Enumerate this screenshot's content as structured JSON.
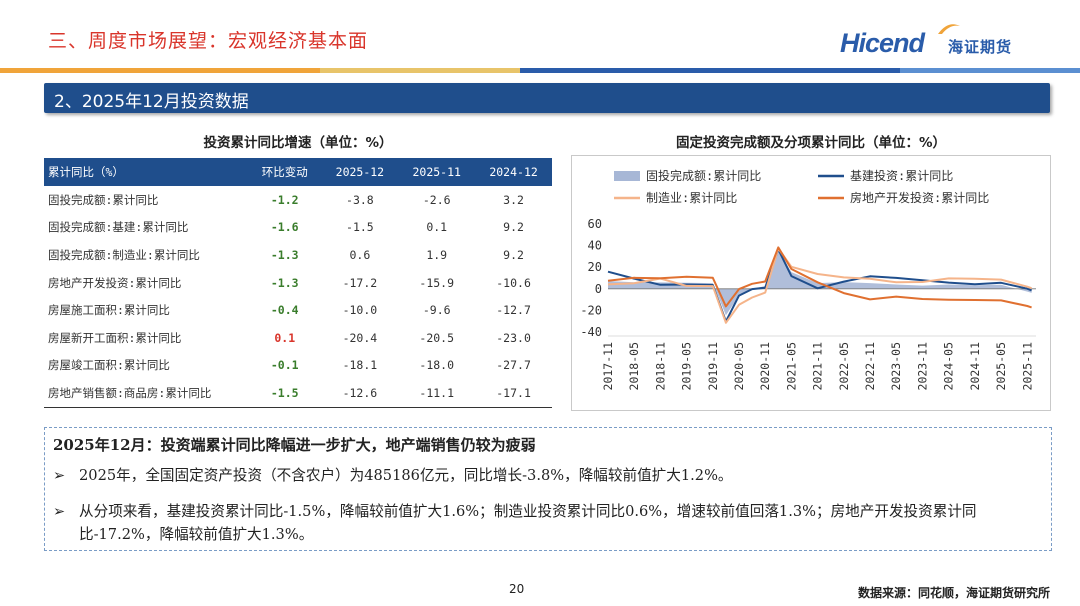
{
  "header": {
    "title": "三、周度市场展望：宏观经济基本面",
    "logo_text": "Hicend",
    "logo_cn": "海证期货"
  },
  "colors": {
    "accent_red": "#d9352b",
    "brand_blue": "#1f4e8c",
    "stripe": [
      "#f0a43a",
      "#e8c46a",
      "#2a5caa",
      "#5b8fd1"
    ]
  },
  "section": {
    "title": "2、2025年12月投资数据"
  },
  "table": {
    "title": "投资累计同比增速（单位：%）",
    "headers": [
      "累计同比（%）",
      "环比变动",
      "2025-12",
      "2025-11",
      "2024-12"
    ],
    "rows": [
      {
        "label": "固投完成额:累计同比",
        "change": "-1.2",
        "v2512": "-3.8",
        "v2511": "-2.6",
        "v2412": "3.2",
        "change_color": "#3a7d2c"
      },
      {
        "label": "固投完成额:基建:累计同比",
        "change": "-1.6",
        "v2512": "-1.5",
        "v2511": "0.1",
        "v2412": "9.2",
        "change_color": "#3a7d2c"
      },
      {
        "label": "固投完成额:制造业:累计同比",
        "change": "-1.3",
        "v2512": "0.6",
        "v2511": "1.9",
        "v2412": "9.2",
        "change_color": "#3a7d2c"
      },
      {
        "label": "房地产开发投资:累计同比",
        "change": "-1.3",
        "v2512": "-17.2",
        "v2511": "-15.9",
        "v2412": "-10.6",
        "change_color": "#3a7d2c"
      },
      {
        "label": "房屋施工面积:累计同比",
        "change": "-0.4",
        "v2512": "-10.0",
        "v2511": "-9.6",
        "v2412": "-12.7",
        "change_color": "#3a7d2c"
      },
      {
        "label": "房屋新开工面积:累计同比",
        "change": "0.1",
        "v2512": "-20.4",
        "v2511": "-20.5",
        "v2412": "-23.0",
        "change_color": "#d9352b"
      },
      {
        "label": "房屋竣工面积:累计同比",
        "change": "-0.1",
        "v2512": "-18.1",
        "v2511": "-18.0",
        "v2412": "-27.7",
        "change_color": "#3a7d2c"
      },
      {
        "label": "房地产销售额:商品房:累计同比",
        "change": "-1.5",
        "v2512": "-12.6",
        "v2511": "-11.1",
        "v2412": "-17.1",
        "change_color": "#3a7d2c"
      }
    ]
  },
  "chart_data": {
    "type": "line",
    "title": "固定投资完成额及分项累计同比（单位：%）",
    "x_ticks": [
      "2017-11",
      "2018-05",
      "2018-11",
      "2019-05",
      "2019-11",
      "2020-05",
      "2020-11",
      "2021-05",
      "2021-11",
      "2022-05",
      "2022-11",
      "2023-05",
      "2023-11",
      "2024-05",
      "2024-11",
      "2025-05",
      "2025-11"
    ],
    "ylim": [
      -40,
      60
    ],
    "y_ticks": [
      60,
      40,
      20,
      0,
      -20,
      -40
    ],
    "grid": false,
    "legend_position": "top",
    "series": [
      {
        "name": "固投完成额:累计同比",
        "kind": "area",
        "color": "#a7b7d6",
        "x": [
          "2017-11",
          "2018-05",
          "2018-11",
          "2019-05",
          "2019-11",
          "2020-02",
          "2020-05",
          "2020-08",
          "2020-11",
          "2021-02",
          "2021-05",
          "2021-11",
          "2022-05",
          "2022-11",
          "2023-05",
          "2023-11",
          "2024-05",
          "2024-11",
          "2025-05",
          "2025-11",
          "2025-12"
        ],
        "values": [
          7.2,
          6.1,
          5.9,
          5.6,
          5.2,
          -24.5,
          -6.3,
          -0.3,
          2.6,
          35.0,
          15.4,
          5.2,
          6.2,
          5.3,
          4.0,
          2.9,
          4.0,
          3.3,
          3.7,
          -2.6,
          -3.8
        ]
      },
      {
        "name": "基建投资:累计同比",
        "kind": "line",
        "color": "#1f4e8c",
        "x": [
          "2017-11",
          "2018-05",
          "2018-11",
          "2019-05",
          "2019-11",
          "2020-02",
          "2020-05",
          "2020-08",
          "2020-11",
          "2021-02",
          "2021-05",
          "2021-11",
          "2022-05",
          "2022-11",
          "2023-05",
          "2023-11",
          "2024-05",
          "2024-11",
          "2025-05",
          "2025-11",
          "2025-12"
        ],
        "values": [
          15.8,
          9.4,
          3.7,
          4.0,
          3.5,
          -30.3,
          -6.3,
          -0.3,
          1.0,
          36.6,
          11.8,
          0.5,
          6.7,
          11.6,
          10.1,
          8.0,
          5.7,
          4.2,
          5.6,
          0.1,
          -1.5
        ]
      },
      {
        "name": "制造业:累计同比",
        "kind": "line",
        "color": "#f5b48a",
        "x": [
          "2017-11",
          "2018-05",
          "2018-11",
          "2019-05",
          "2019-11",
          "2020-02",
          "2020-05",
          "2020-08",
          "2020-11",
          "2021-02",
          "2021-05",
          "2021-11",
          "2022-05",
          "2022-11",
          "2023-05",
          "2023-11",
          "2024-05",
          "2024-11",
          "2025-05",
          "2025-11",
          "2025-12"
        ],
        "values": [
          4.1,
          5.2,
          9.5,
          2.7,
          2.5,
          -31.5,
          -14.8,
          -8.1,
          -3.5,
          37.3,
          20.4,
          13.7,
          10.6,
          9.3,
          6.0,
          6.3,
          9.6,
          9.3,
          8.5,
          1.9,
          0.6
        ]
      },
      {
        "name": "房地产开发投资:累计同比",
        "kind": "line",
        "color": "#e07030",
        "x": [
          "2017-11",
          "2018-05",
          "2018-11",
          "2019-05",
          "2019-11",
          "2020-02",
          "2020-05",
          "2020-08",
          "2020-11",
          "2021-02",
          "2021-05",
          "2021-11",
          "2022-05",
          "2022-11",
          "2023-05",
          "2023-11",
          "2024-05",
          "2024-11",
          "2025-05",
          "2025-11",
          "2025-12"
        ],
        "values": [
          7.5,
          10.2,
          9.7,
          11.2,
          10.2,
          -16.3,
          -0.3,
          4.6,
          6.8,
          38.3,
          18.3,
          6.0,
          -4.0,
          -9.8,
          -7.2,
          -9.4,
          -10.1,
          -10.4,
          -10.7,
          -15.9,
          -17.2
        ]
      }
    ]
  },
  "note": {
    "heading": "2025年12月：投资端累计同比降幅进一步扩大，地产端销售仍较为疲弱",
    "bullets": [
      "2025年，全国固定资产投资（不含农户）为485186亿元，同比增长-3.8%，降幅较前值扩大1.2%。",
      "从分项来看，基建投资累计同比-1.5%，降幅较前值扩大1.6%；制造业投资累计同比0.6%，增速较前值回落1.3%；房地产开发投资累计同比-17.2%，降幅较前值扩大1.3%。"
    ],
    "bullet_symbol": "➢"
  },
  "footer": {
    "page_number": "20",
    "source": "数据来源：同花顺，海证期货研究所"
  }
}
